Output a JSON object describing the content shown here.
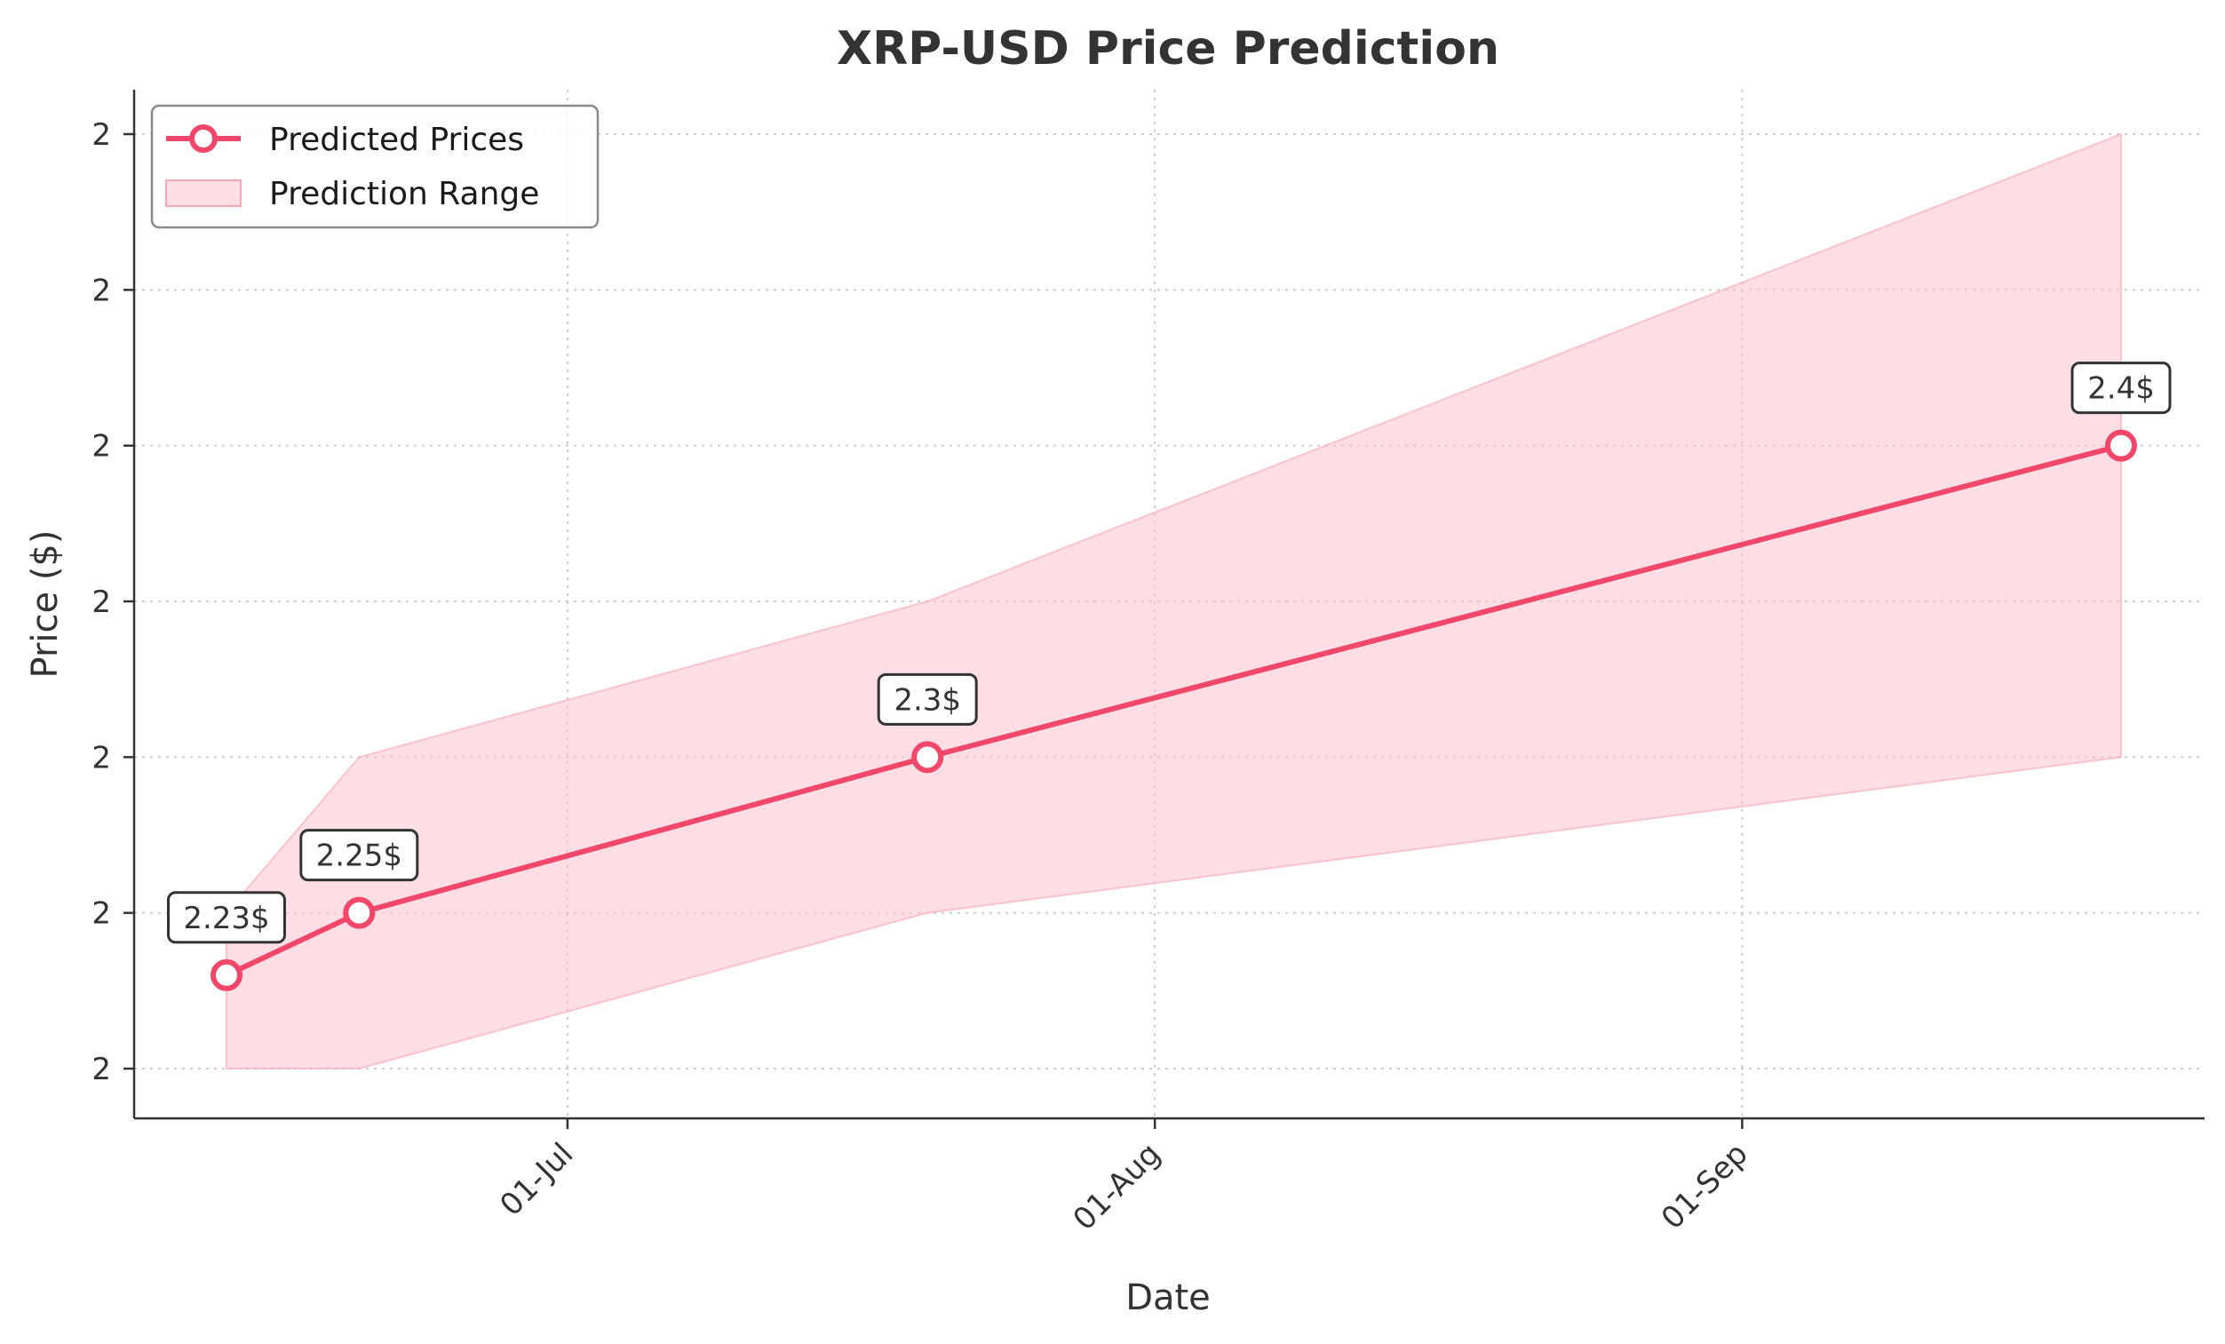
{
  "chart_data": {
    "type": "line",
    "title": "XRP-USD Price Prediction",
    "xlabel": "Date",
    "ylabel": "Price ($)",
    "x_ticks": [
      "01-Jul",
      "01-Aug",
      "01-Sep"
    ],
    "y_tick_labels": [
      "2",
      "2",
      "2",
      "2",
      "2",
      "2",
      "2"
    ],
    "ylim": [
      2.18,
      2.48
    ],
    "grid": true,
    "legend_position": "top-left",
    "series": [
      {
        "name": "Predicted Prices",
        "color": "#f0476a",
        "x": [
          "2025-06-13",
          "2025-06-20",
          "2025-07-20",
          "2025-09-21"
        ],
        "values": [
          2.228,
          2.248,
          2.298,
          2.398
        ],
        "labels": [
          "2.23$",
          "2.25$",
          "2.3$",
          "2.4$"
        ]
      },
      {
        "name": "Prediction Range",
        "type": "area",
        "color": "#ffc0cb",
        "x": [
          "2025-06-13",
          "2025-06-20",
          "2025-07-20",
          "2025-09-21"
        ],
        "lower": [
          2.198,
          2.198,
          2.248,
          2.298
        ],
        "upper": [
          2.248,
          2.298,
          2.348,
          2.498
        ]
      }
    ]
  }
}
